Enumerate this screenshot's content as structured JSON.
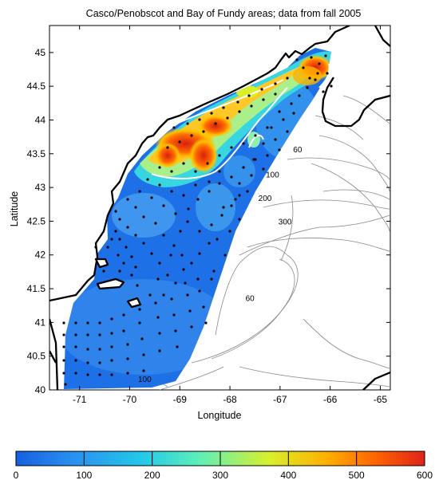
{
  "title": "Casco/Penobscot and Bay of Fundy areas; data from fall 2005",
  "axes": {
    "xlabel": "Longitude",
    "ylabel": "Latitude",
    "xlim": [
      -71.6,
      -64.8
    ],
    "ylim": [
      40.0,
      45.4
    ],
    "xticks": [
      -71,
      -70,
      -69,
      -68,
      -67,
      -66,
      -65
    ],
    "yticks": [
      40,
      40.5,
      41,
      41.5,
      42,
      42.5,
      43,
      43.5,
      44,
      44.5,
      45
    ]
  },
  "colorbar": {
    "ticks": [
      0,
      100,
      200,
      300,
      400,
      500,
      600
    ],
    "range": [
      0,
      600
    ],
    "colors": [
      "#1565e0",
      "#2a8ff0",
      "#22c8e8",
      "#5ef0b0",
      "#d6f030",
      "#ffb000",
      "#ff6a00",
      "#e0261a"
    ]
  },
  "contour_labels": [
    {
      "text": "60",
      "lon": -66.65,
      "lat": 43.52
    },
    {
      "text": "100",
      "lon": -67.15,
      "lat": 43.15
    },
    {
      "text": "200",
      "lon": -67.3,
      "lat": 42.8
    },
    {
      "text": "300",
      "lon": -66.9,
      "lat": 42.45
    },
    {
      "text": "60",
      "lon": -67.6,
      "lat": 41.32
    },
    {
      "text": "100",
      "lon": -69.7,
      "lat": 40.12
    }
  ]
}
